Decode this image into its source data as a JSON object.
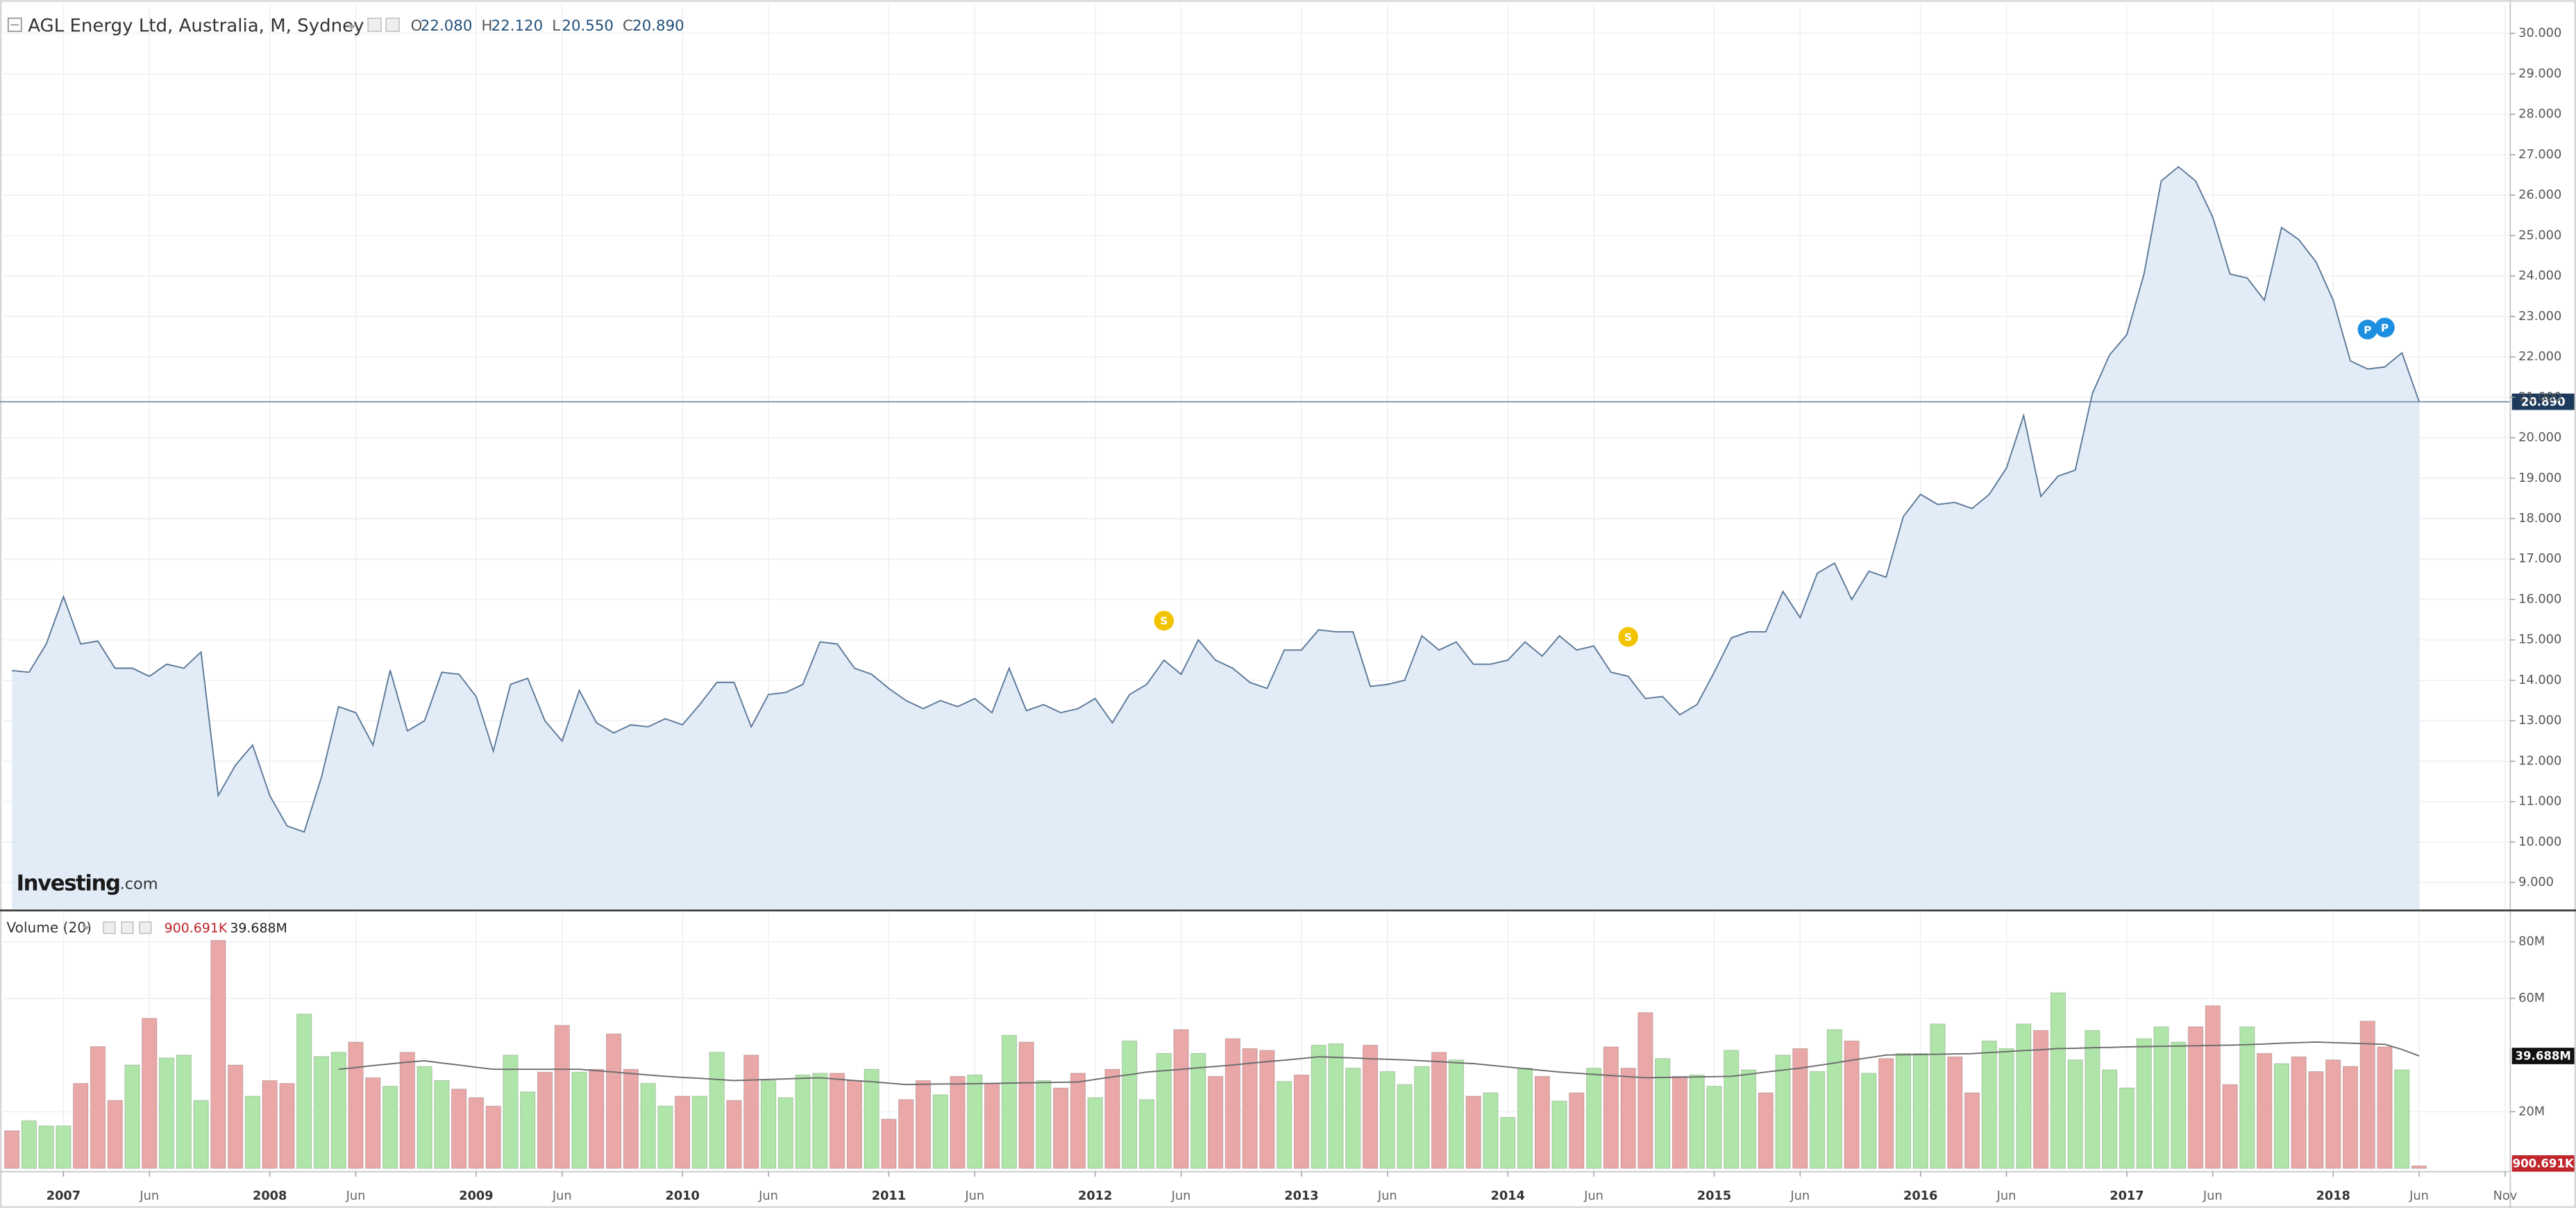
{
  "chart_data": [
    {
      "type": "area",
      "title": "AGL Energy Ltd, Australia, M, Sydney",
      "ohlc": [
        {
          "prefix": "O",
          "value": 22.08,
          "label": "22.080"
        },
        {
          "prefix": "H",
          "value": 22.12,
          "label": "22.120"
        },
        {
          "prefix": "L",
          "value": 20.55,
          "label": "20.550"
        },
        {
          "prefix": "C",
          "value": 20.89,
          "label": "20.890"
        }
      ],
      "series": [
        {
          "color": "#5a7897",
          "fill": "#dde9f6",
          "values": [
            14.24,
            14.2,
            14.9,
            16.07,
            14.9,
            14.97,
            14.3,
            14.3,
            14.1,
            14.4,
            14.3,
            14.7,
            11.15,
            11.9,
            12.4,
            11.15,
            10.4,
            10.25,
            11.6,
            13.35,
            13.2,
            12.4,
            14.25,
            12.75,
            13.0,
            14.2,
            14.15,
            13.6,
            12.25,
            13.9,
            14.05,
            13.0,
            12.5,
            13.75,
            12.95,
            12.7,
            12.9,
            12.85,
            13.05,
            12.9,
            13.4,
            13.95,
            13.95,
            12.85,
            13.65,
            13.7,
            13.9,
            14.95,
            14.9,
            14.3,
            14.15,
            13.8,
            13.5,
            13.3,
            13.5,
            13.35,
            13.55,
            13.2,
            14.3,
            13.25,
            13.4,
            13.2,
            13.3,
            13.55,
            12.95,
            13.65,
            13.9,
            14.5,
            14.15,
            15.0,
            14.5,
            14.3,
            13.95,
            13.8,
            14.75,
            14.75,
            15.25,
            15.2,
            15.2,
            13.85,
            13.9,
            14.0,
            15.1,
            14.75,
            14.95,
            14.4,
            14.4,
            14.5,
            14.95,
            14.6,
            15.1,
            14.75,
            14.85,
            14.2,
            14.1,
            13.55,
            13.6,
            13.15,
            13.4,
            14.2,
            15.05,
            15.2,
            15.2,
            16.2,
            15.55,
            16.65,
            16.9,
            16.0,
            16.7,
            16.55,
            18.05,
            18.6,
            18.35,
            18.4,
            18.25,
            18.6,
            19.25,
            20.55,
            18.55,
            19.05,
            19.2,
            21.1,
            22.05,
            22.55,
            24.05,
            26.35,
            26.7,
            26.35,
            25.45,
            24.05,
            23.95,
            23.4,
            25.2,
            24.9,
            24.35,
            23.4,
            21.9,
            21.7,
            21.75,
            22.1,
            20.89
          ]
        }
      ],
      "xlim": [
        -0.5,
        145.3
      ],
      "ylim": [
        8.35,
        30.7
      ],
      "yticks": [
        {
          "value": 9,
          "label": "9.000"
        },
        {
          "value": 10,
          "label": "10.000"
        },
        {
          "value": 11,
          "label": "11.000"
        },
        {
          "value": 12,
          "label": "12.000"
        },
        {
          "value": 13,
          "label": "13.000"
        },
        {
          "value": 14,
          "label": "14.000"
        },
        {
          "value": 15,
          "label": "15.000"
        },
        {
          "value": 16,
          "label": "16.000"
        },
        {
          "value": 17,
          "label": "17.000"
        },
        {
          "value": 18,
          "label": "18.000"
        },
        {
          "value": 19,
          "label": "19.000"
        },
        {
          "value": 20,
          "label": "20.000"
        },
        {
          "value": 21,
          "label": "21.000"
        },
        {
          "value": 22,
          "label": "22.000"
        },
        {
          "value": 23,
          "label": "23.000"
        },
        {
          "value": 24,
          "label": "24.000"
        },
        {
          "value": 25,
          "label": "25.000"
        },
        {
          "value": 26,
          "label": "26.000"
        },
        {
          "value": 27,
          "label": "27.000"
        },
        {
          "value": 28,
          "label": "28.000"
        },
        {
          "value": 29,
          "label": "29.000"
        },
        {
          "value": 30,
          "label": "30.000"
        }
      ],
      "grid": true,
      "events": [
        {
          "x": 67,
          "label": "S",
          "color": "#f2c300"
        },
        {
          "x": 94,
          "label": "S",
          "color": "#f2c300"
        },
        {
          "x": 137,
          "label": "P",
          "color": "#1d8fe1"
        },
        {
          "x": 138,
          "label": "P",
          "color": "#1d8fe1"
        }
      ],
      "brand": "Investing",
      "brand_suffix": ".com"
    },
    {
      "type": "bar",
      "title": "Volume (20)",
      "series": [
        {
          "last_label": "900.691K",
          "values": [
            13.3,
            16.8,
            15,
            15,
            30,
            43,
            24,
            36.5,
            53,
            39,
            40,
            24,
            80.5,
            36.5,
            25.5,
            31,
            30,
            54.5,
            39.5,
            41,
            44.6,
            32,
            29,
            41,
            36,
            31,
            28,
            25,
            22,
            40,
            27,
            34,
            50.5,
            34,
            35,
            47.5,
            35,
            30,
            22,
            25.5,
            25.5,
            41,
            24,
            40,
            31,
            25,
            33,
            33.6,
            33.6,
            31,
            35,
            17.4,
            24.3,
            31,
            26,
            32.5,
            33,
            30,
            47,
            44.6,
            31,
            28.4,
            33.6,
            25,
            35,
            45,
            24.3,
            40.6,
            49,
            40.6,
            32.5,
            45.8,
            42.3,
            41.7,
            30.7,
            33,
            43.5,
            44,
            35.4,
            43.5,
            34.2,
            29.6,
            36,
            41,
            38.3,
            25.5,
            26.7,
            18,
            35.4,
            32.5,
            23.8,
            26.7,
            35.4,
            42.9,
            35.4,
            55,
            38.8,
            32.5,
            33,
            29,
            41.7,
            34.8,
            26.7,
            40,
            42.3,
            34.2,
            49,
            45,
            33.6,
            38.8,
            40.6,
            40.6,
            51,
            39.4,
            26.7,
            45,
            42.3,
            51,
            48.7,
            62,
            38.3,
            48.7,
            34.8,
            28.4,
            45.8,
            50,
            44.6,
            50,
            57.4,
            29.6,
            50,
            40.6,
            37,
            39.4,
            34.2,
            38.3,
            36,
            52,
            42.9,
            34.8,
            0.900691
          ],
          "colors": [
            "#e9a7a7",
            "#afe5a8",
            "#afe5a8",
            "#afe5a8",
            "#e9a7a7",
            "#e9a7a7",
            "#e9a7a7",
            "#afe5a8",
            "#e9a7a7",
            "#afe5a8",
            "#afe5a8",
            "#afe5a8",
            "#e9a7a7",
            "#e9a7a7",
            "#afe5a8",
            "#e9a7a7",
            "#e9a7a7",
            "#afe5a8",
            "#afe5a8",
            "#afe5a8",
            "#e9a7a7",
            "#e9a7a7",
            "#afe5a8",
            "#e9a7a7",
            "#afe5a8",
            "#afe5a8",
            "#e9a7a7",
            "#e9a7a7",
            "#e9a7a7",
            "#afe5a8",
            "#afe5a8",
            "#e9a7a7",
            "#e9a7a7",
            "#afe5a8",
            "#e9a7a7",
            "#e9a7a7",
            "#e9a7a7",
            "#afe5a8",
            "#afe5a8",
            "#e9a7a7",
            "#afe5a8",
            "#afe5a8",
            "#e9a7a7",
            "#e9a7a7",
            "#afe5a8",
            "#afe5a8",
            "#afe5a8",
            "#afe5a8",
            "#e9a7a7",
            "#e9a7a7",
            "#afe5a8",
            "#e9a7a7",
            "#e9a7a7",
            "#e9a7a7",
            "#afe5a8",
            "#e9a7a7",
            "#afe5a8",
            "#e9a7a7",
            "#afe5a8",
            "#e9a7a7",
            "#afe5a8",
            "#e9a7a7",
            "#e9a7a7",
            "#afe5a8",
            "#e9a7a7",
            "#afe5a8",
            "#afe5a8",
            "#afe5a8",
            "#e9a7a7",
            "#afe5a8",
            "#e9a7a7",
            "#e9a7a7",
            "#e9a7a7",
            "#e9a7a7",
            "#afe5a8",
            "#e9a7a7",
            "#afe5a8",
            "#afe5a8",
            "#afe5a8",
            "#e9a7a7",
            "#afe5a8",
            "#afe5a8",
            "#afe5a8",
            "#e9a7a7",
            "#afe5a8",
            "#e9a7a7",
            "#afe5a8",
            "#afe5a8",
            "#afe5a8",
            "#e9a7a7",
            "#afe5a8",
            "#e9a7a7",
            "#afe5a8",
            "#e9a7a7",
            "#e9a7a7",
            "#e9a7a7",
            "#afe5a8",
            "#e9a7a7",
            "#afe5a8",
            "#afe5a8",
            "#afe5a8",
            "#afe5a8",
            "#e9a7a7",
            "#afe5a8",
            "#e9a7a7",
            "#afe5a8",
            "#afe5a8",
            "#e9a7a7",
            "#afe5a8",
            "#e9a7a7",
            "#afe5a8",
            "#afe5a8",
            "#afe5a8",
            "#e9a7a7",
            "#e9a7a7",
            "#afe5a8",
            "#afe5a8",
            "#afe5a8",
            "#e9a7a7",
            "#afe5a8",
            "#afe5a8",
            "#afe5a8",
            "#afe5a8",
            "#afe5a8",
            "#afe5a8",
            "#afe5a8",
            "#afe5a8",
            "#e9a7a7",
            "#e9a7a7",
            "#e9a7a7",
            "#afe5a8",
            "#e9a7a7",
            "#afe5a8",
            "#e9a7a7",
            "#e9a7a7",
            "#e9a7a7",
            "#e9a7a7",
            "#e9a7a7",
            "#e9a7a7",
            "#afe5a8",
            "#e9a7a7"
          ],
          "label_color": "#c0262c"
        },
        {
          "type": "line",
          "color": "#6b6b6b",
          "last_label": "39.688M",
          "label_color": "#222222",
          "values": [
            null,
            null,
            null,
            null,
            null,
            null,
            null,
            null,
            null,
            null,
            null,
            null,
            null,
            null,
            null,
            null,
            null,
            null,
            null,
            35,
            35.6,
            36.3,
            36.9,
            37.5,
            38,
            37.2,
            36.5,
            35.7,
            35,
            35,
            35,
            35,
            35,
            35,
            34.5,
            34,
            33.5,
            33,
            32.5,
            32.1,
            31.8,
            31.4,
            31,
            31.2,
            31.4,
            31.6,
            31.8,
            32,
            31.5,
            31,
            30.6,
            30.1,
            29.6,
            29.7,
            29.8,
            29.8,
            29.9,
            30,
            30.1,
            30.2,
            30.3,
            30.4,
            30.5,
            31.4,
            32.3,
            33.1,
            34,
            34.5,
            35,
            35.5,
            36,
            36.5,
            37.1,
            37.7,
            38.2,
            38.8,
            39.4,
            39.2,
            39,
            38.7,
            38.5,
            38.3,
            38,
            37.7,
            37.3,
            37,
            36.4,
            35.8,
            35.2,
            34.6,
            34,
            33.6,
            33.2,
            32.8,
            32.4,
            32,
            32.1,
            32.2,
            32.3,
            32.4,
            32.5,
            33.2,
            34,
            34.7,
            35.4,
            36.3,
            37.2,
            38.2,
            39.1,
            40,
            40.1,
            40.2,
            40.3,
            40.4,
            40.5,
            40.9,
            41.2,
            41.6,
            41.9,
            42.3,
            42.4,
            42.6,
            42.7,
            42.9,
            43,
            43.1,
            43.2,
            43.3,
            43.4,
            43.5,
            43.7,
            43.9,
            44.2,
            44.4,
            44.6,
            44.4,
            44.2,
            44,
            43.8,
            42,
            39.688
          ]
        }
      ],
      "xlim": [
        -0.5,
        145.3
      ],
      "ylim": [
        -1.16,
        89.9
      ],
      "yticks": [
        {
          "value": 20,
          "label": "20M"
        },
        {
          "value": 60,
          "label": "60M"
        },
        {
          "value": 80,
          "label": "80M"
        }
      ],
      "xticks": [
        {
          "value": 3,
          "label": "2007"
        },
        {
          "value": 8,
          "label": "Jun"
        },
        {
          "value": 15,
          "label": "2008"
        },
        {
          "value": 20,
          "label": "Jun"
        },
        {
          "value": 27,
          "label": "2009"
        },
        {
          "value": 32,
          "label": "Jun"
        },
        {
          "value": 39,
          "label": "2010"
        },
        {
          "value": 44,
          "label": "Jun"
        },
        {
          "value": 51,
          "label": "2011"
        },
        {
          "value": 56,
          "label": "Jun"
        },
        {
          "value": 63,
          "label": "2012"
        },
        {
          "value": 68,
          "label": "Jun"
        },
        {
          "value": 75,
          "label": "2013"
        },
        {
          "value": 80,
          "label": "Jun"
        },
        {
          "value": 87,
          "label": "2014"
        },
        {
          "value": 92,
          "label": "Jun"
        },
        {
          "value": 99,
          "label": "2015"
        },
        {
          "value": 104,
          "label": "Jun"
        },
        {
          "value": 111,
          "label": "2016"
        },
        {
          "value": 116,
          "label": "Jun"
        },
        {
          "value": 123,
          "label": "2017"
        },
        {
          "value": 128,
          "label": "Jun"
        },
        {
          "value": 135,
          "label": "2018"
        },
        {
          "value": 140,
          "label": "Jun"
        },
        {
          "value": 145,
          "label": "Nov"
        }
      ],
      "grid": true
    }
  ]
}
